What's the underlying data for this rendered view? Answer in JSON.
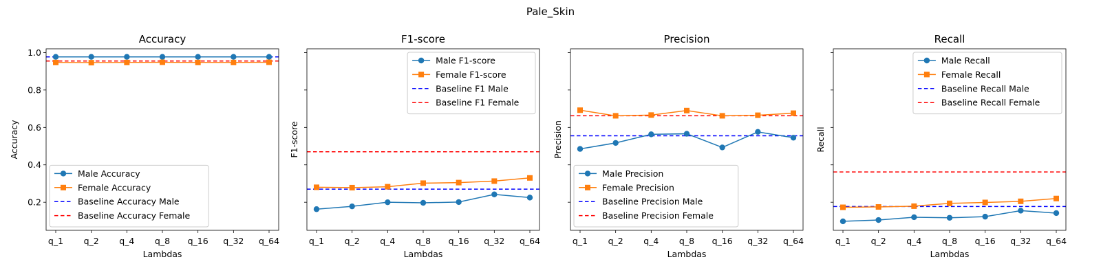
{
  "suptitle": "Pale_Skin",
  "colors": {
    "male": "#1f77b4",
    "female": "#ff7f0e",
    "baseline_male": "#0000ff",
    "baseline_female": "#ff0000"
  },
  "chart_data": [
    {
      "type": "line",
      "title": "Accuracy",
      "xlabel": "Lambdas",
      "ylabel": "Accuracy",
      "categories": [
        "q_1",
        "q_2",
        "q_4",
        "q_8",
        "q_16",
        "q_32",
        "q_64"
      ],
      "ylim": [
        0.05,
        1.02
      ],
      "yticks": [
        0.2,
        0.4,
        0.6,
        0.8,
        1.0
      ],
      "ytick_labels": [
        "0.2",
        "0.4",
        "0.6",
        "0.8",
        "1.0"
      ],
      "show_ytick_labels": true,
      "grid": false,
      "legend": "lower-left",
      "series": [
        {
          "name": "Male Accuracy",
          "marker": "circle",
          "values": [
            0.977,
            0.977,
            0.977,
            0.977,
            0.977,
            0.977,
            0.977
          ]
        },
        {
          "name": "Female Accuracy",
          "marker": "square",
          "values": [
            0.947,
            0.946,
            0.947,
            0.948,
            0.947,
            0.947,
            0.948
          ]
        }
      ],
      "baselines": [
        {
          "name": "Baseline Accuracy Male",
          "value": 0.977
        },
        {
          "name": "Baseline Accuracy Female",
          "value": 0.955
        }
      ]
    },
    {
      "type": "line",
      "title": "F1-score",
      "xlabel": "Lambdas",
      "ylabel": "F1-score",
      "categories": [
        "q_1",
        "q_2",
        "q_4",
        "q_8",
        "q_16",
        "q_32",
        "q_64"
      ],
      "ylim": [
        0.05,
        1.02
      ],
      "yticks": [
        0.2,
        0.4,
        0.6,
        0.8,
        1.0
      ],
      "show_ytick_labels": false,
      "grid": false,
      "legend": "top-right",
      "series": [
        {
          "name": "Male F1-score",
          "marker": "circle",
          "values": [
            0.163,
            0.178,
            0.2,
            0.197,
            0.201,
            0.242,
            0.225
          ]
        },
        {
          "name": "Female F1-score",
          "marker": "square",
          "values": [
            0.28,
            0.278,
            0.283,
            0.302,
            0.305,
            0.313,
            0.33
          ]
        }
      ],
      "baselines": [
        {
          "name": "Baseline F1 Male",
          "value": 0.27
        },
        {
          "name": "Baseline F1 Female",
          "value": 0.47
        }
      ]
    },
    {
      "type": "line",
      "title": "Precision",
      "xlabel": "Lambdas",
      "ylabel": "Precision",
      "categories": [
        "q_1",
        "q_2",
        "q_4",
        "q_8",
        "q_16",
        "q_32",
        "q_64"
      ],
      "ylim": [
        0.05,
        1.02
      ],
      "yticks": [
        0.2,
        0.4,
        0.6,
        0.8,
        1.0
      ],
      "show_ytick_labels": false,
      "grid": false,
      "legend": "lower-left",
      "series": [
        {
          "name": "Male Precision",
          "marker": "circle",
          "values": [
            0.485,
            0.517,
            0.563,
            0.566,
            0.493,
            0.576,
            0.545
          ]
        },
        {
          "name": "Female Precision",
          "marker": "square",
          "values": [
            0.692,
            0.662,
            0.666,
            0.69,
            0.662,
            0.665,
            0.676
          ]
        }
      ],
      "baselines": [
        {
          "name": "Baseline Precision Male",
          "value": 0.555
        },
        {
          "name": "Baseline Precision Female",
          "value": 0.662
        }
      ]
    },
    {
      "type": "line",
      "title": "Recall",
      "xlabel": "Lambdas",
      "ylabel": "Recall",
      "categories": [
        "q_1",
        "q_2",
        "q_4",
        "q_8",
        "q_16",
        "q_32",
        "q_64"
      ],
      "ylim": [
        0.05,
        1.02
      ],
      "yticks": [
        0.2,
        0.4,
        0.6,
        0.8,
        1.0
      ],
      "show_ytick_labels": false,
      "grid": false,
      "legend": "top-right",
      "series": [
        {
          "name": "Male Recall",
          "marker": "circle",
          "values": [
            0.098,
            0.105,
            0.12,
            0.117,
            0.123,
            0.155,
            0.142
          ]
        },
        {
          "name": "Female Recall",
          "marker": "square",
          "values": [
            0.173,
            0.175,
            0.179,
            0.194,
            0.199,
            0.205,
            0.22
          ]
        }
      ],
      "baselines": [
        {
          "name": "Baseline Recall Male",
          "value": 0.177
        },
        {
          "name": "Baseline Recall Female",
          "value": 0.362
        }
      ]
    }
  ]
}
